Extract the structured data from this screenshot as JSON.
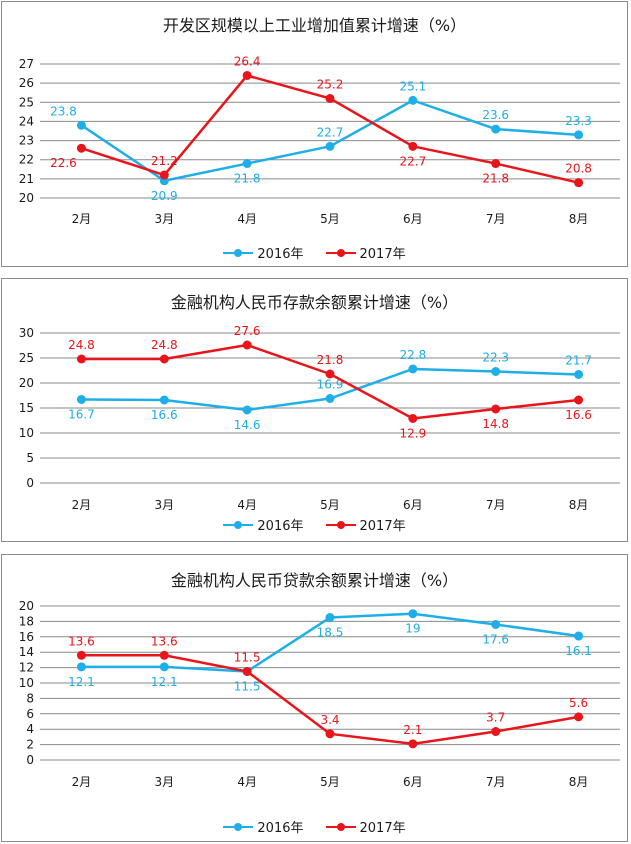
{
  "chart_data": [
    {
      "type": "line",
      "title": "开发区规模以上工业增加值累计增速（%）",
      "categories": [
        "2月",
        "3月",
        "4月",
        "5月",
        "6月",
        "7月",
        "8月"
      ],
      "ylim": [
        20,
        27
      ],
      "yticks": [
        20,
        21,
        22,
        23,
        24,
        25,
        26,
        27
      ],
      "grid": true,
      "legend_position": "bottom",
      "series": [
        {
          "name": "2016年",
          "color": "#1eaee8",
          "values": [
            23.8,
            20.9,
            21.8,
            22.7,
            25.1,
            23.6,
            23.3
          ]
        },
        {
          "name": "2017年",
          "color": "#e8151b",
          "values": [
            22.6,
            21.2,
            26.4,
            25.2,
            22.7,
            21.8,
            20.8
          ]
        }
      ]
    },
    {
      "type": "line",
      "title": "金融机构人民币存款余额累计增速（%）",
      "categories": [
        "2月",
        "3月",
        "4月",
        "5月",
        "6月",
        "7月",
        "8月"
      ],
      "ylim": [
        0,
        30
      ],
      "yticks": [
        0,
        5,
        10,
        15,
        20,
        25,
        30
      ],
      "grid": true,
      "legend_position": "bottom",
      "series": [
        {
          "name": "2016年",
          "color": "#1eaee8",
          "values": [
            16.7,
            16.6,
            14.6,
            16.9,
            22.8,
            22.3,
            21.7
          ]
        },
        {
          "name": "2017年",
          "color": "#e8151b",
          "values": [
            24.8,
            24.8,
            27.6,
            21.8,
            12.9,
            14.8,
            16.6
          ]
        }
      ]
    },
    {
      "type": "line",
      "title": "金融机构人民币贷款余额累计增速（%）",
      "categories": [
        "2月",
        "3月",
        "4月",
        "5月",
        "6月",
        "7月",
        "8月"
      ],
      "ylim": [
        0,
        20
      ],
      "yticks": [
        0,
        2,
        4,
        6,
        8,
        10,
        12,
        14,
        16,
        18,
        20
      ],
      "grid": true,
      "legend_position": "bottom",
      "series": [
        {
          "name": "2016年",
          "color": "#1eaee8",
          "values": [
            12.1,
            12.1,
            11.5,
            18.5,
            19,
            17.6,
            16.1
          ]
        },
        {
          "name": "2017年",
          "color": "#e8151b",
          "values": [
            13.6,
            13.6,
            11.5,
            3.4,
            2.1,
            3.7,
            5.6
          ]
        }
      ]
    }
  ]
}
